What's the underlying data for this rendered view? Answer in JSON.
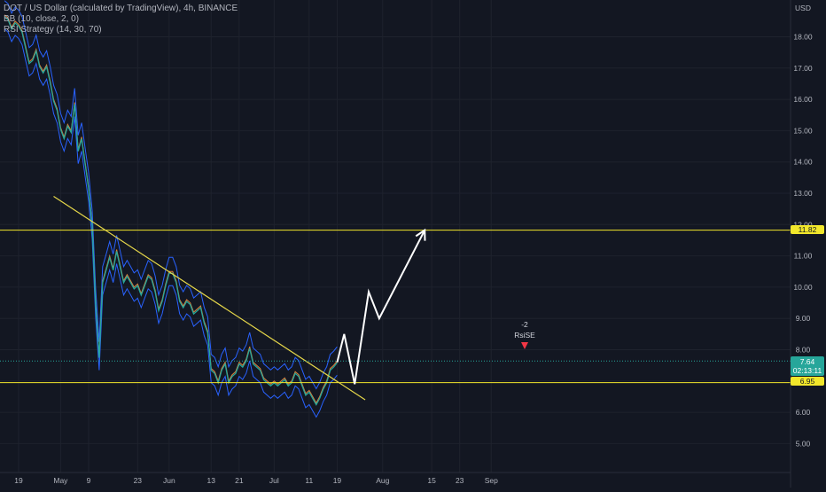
{
  "legend": {
    "symbol_line": "DOT / US Dollar (calculated by TradingView), 4h, BINANCE",
    "indicator_bb": "BB (10, close, 2, 0)",
    "indicator_rsi": "RSI Strategy (14, 30, 70)"
  },
  "currency": "USD",
  "price_tags": {
    "upper_level": "11.82",
    "current_price": "7.64",
    "countdown": "02:13:11",
    "lower_level": "6.95"
  },
  "signal": {
    "value": "-2",
    "label": "RsiSE"
  },
  "colors": {
    "background": "#131722",
    "level_line": "#f2e72b",
    "trend_line": "#e6d74a",
    "band": "#2962ff",
    "price_tag": "#26a69a",
    "projection": "#ffffff",
    "signal": "#f23645"
  },
  "chart_data": {
    "type": "line",
    "y_ticks": [
      "5.00",
      "6.00",
      "7.00",
      "8.00",
      "9.00",
      "10.00",
      "11.00",
      "12.00",
      "13.00",
      "14.00",
      "15.00",
      "16.00",
      "17.00",
      "18.00"
    ],
    "x_ticks": [
      "19",
      "May",
      "9",
      "23",
      "Jun",
      "13",
      "21",
      "Jul",
      "11",
      "19",
      "Aug",
      "15",
      "23",
      "Sep"
    ],
    "ylim": [
      4.6,
      19.3
    ],
    "horizontal_levels": [
      11.82,
      6.95
    ],
    "trend_line": {
      "from": [
        "Apr 29",
        12.9
      ],
      "to": [
        "Jul 27",
        6.4
      ]
    },
    "projection_path": [
      [
        "Jul 19",
        7.6
      ],
      [
        "Jul 21",
        8.5
      ],
      [
        "Jul 24",
        6.9
      ],
      [
        "Jul 28",
        9.85
      ],
      [
        "Jul 31",
        9.0
      ],
      [
        "Aug 13",
        11.82
      ]
    ],
    "series": [
      {
        "values": [
          [
            "Apr 15",
            18.7
          ],
          [
            "Apr 16",
            18.6
          ],
          [
            "Apr 17",
            18.3
          ],
          [
            "Apr 18",
            18.5
          ],
          [
            "Apr 19",
            18.4
          ],
          [
            "Apr 20",
            18.2
          ],
          [
            "Apr 21",
            17.7
          ],
          [
            "Apr 22",
            17.2
          ],
          [
            "Apr 23",
            17.3
          ],
          [
            "Apr 24",
            17.6
          ],
          [
            "Apr 25",
            17.1
          ],
          [
            "Apr 26",
            16.9
          ],
          [
            "Apr 27",
            17.1
          ],
          [
            "Apr 28",
            16.6
          ],
          [
            "Apr 29",
            16.0
          ],
          [
            "Apr 30",
            15.7
          ],
          [
            "May 1",
            15.1
          ],
          [
            "May 2",
            14.8
          ],
          [
            "May 3",
            15.2
          ],
          [
            "May 4",
            15.0
          ],
          [
            "May 5",
            15.9
          ],
          [
            "May 6",
            14.4
          ],
          [
            "May 7",
            14.8
          ],
          [
            "May 8",
            14.0
          ],
          [
            "May 9",
            13.2
          ],
          [
            "May 10",
            12.0
          ],
          [
            "May 11",
            9.5
          ],
          [
            "May 12",
            7.8
          ],
          [
            "May 13",
            10.2
          ],
          [
            "May 14",
            10.6
          ],
          [
            "May 15",
            11.0
          ],
          [
            "May 16",
            10.6
          ],
          [
            "May 17",
            11.2
          ],
          [
            "May 18",
            10.7
          ],
          [
            "May 19",
            10.2
          ],
          [
            "May 20",
            10.4
          ],
          [
            "May 21",
            10.2
          ],
          [
            "May 22",
            10.0
          ],
          [
            "May 23",
            10.1
          ],
          [
            "May 24",
            9.8
          ],
          [
            "May 25",
            10.1
          ],
          [
            "May 26",
            10.4
          ],
          [
            "May 27",
            10.3
          ],
          [
            "May 28",
            9.9
          ],
          [
            "May 29",
            9.3
          ],
          [
            "May 30",
            9.6
          ],
          [
            "May 31",
            10.1
          ],
          [
            "Jun 1",
            10.5
          ],
          [
            "Jun 2",
            10.5
          ],
          [
            "Jun 3",
            10.2
          ],
          [
            "Jun 4",
            9.6
          ],
          [
            "Jun 5",
            9.4
          ],
          [
            "Jun 6",
            9.6
          ],
          [
            "Jun 7",
            9.5
          ],
          [
            "Jun 8",
            9.2
          ],
          [
            "Jun 9",
            9.3
          ],
          [
            "Jun 10",
            9.4
          ],
          [
            "Jun 11",
            8.9
          ],
          [
            "Jun 12",
            8.6
          ],
          [
            "Jun 13",
            7.4
          ],
          [
            "Jun 14",
            7.3
          ],
          [
            "Jun 15",
            7.0
          ],
          [
            "Jun 16",
            7.4
          ],
          [
            "Jun 17",
            7.6
          ],
          [
            "Jun 18",
            7.0
          ],
          [
            "Jun 19",
            7.2
          ],
          [
            "Jun 20",
            7.3
          ],
          [
            "Jun 21",
            7.6
          ],
          [
            "Jun 22",
            7.5
          ],
          [
            "Jun 23",
            7.7
          ],
          [
            "Jun 24",
            8.1
          ],
          [
            "Jun 25",
            7.6
          ],
          [
            "Jun 26",
            7.5
          ],
          [
            "Jun 27",
            7.4
          ],
          [
            "Jun 28",
            7.1
          ],
          [
            "Jun 29",
            7.0
          ],
          [
            "Jun 30",
            6.9
          ],
          [
            "Jul 1",
            7.0
          ],
          [
            "Jul 2",
            6.9
          ],
          [
            "Jul 3",
            7.0
          ],
          [
            "Jul 4",
            7.1
          ],
          [
            "Jul 5",
            6.9
          ],
          [
            "Jul 6",
            7.0
          ],
          [
            "Jul 7",
            7.3
          ],
          [
            "Jul 8",
            7.2
          ],
          [
            "Jul 9",
            6.9
          ],
          [
            "Jul 10",
            6.6
          ],
          [
            "Jul 11",
            6.7
          ],
          [
            "Jul 12",
            6.5
          ],
          [
            "Jul 13",
            6.3
          ],
          [
            "Jul 14",
            6.5
          ],
          [
            "Jul 15",
            6.8
          ],
          [
            "Jul 16",
            7.0
          ],
          [
            "Jul 17",
            7.4
          ],
          [
            "Jul 18",
            7.5
          ],
          [
            "Jul 19",
            7.64
          ]
        ]
      }
    ]
  }
}
